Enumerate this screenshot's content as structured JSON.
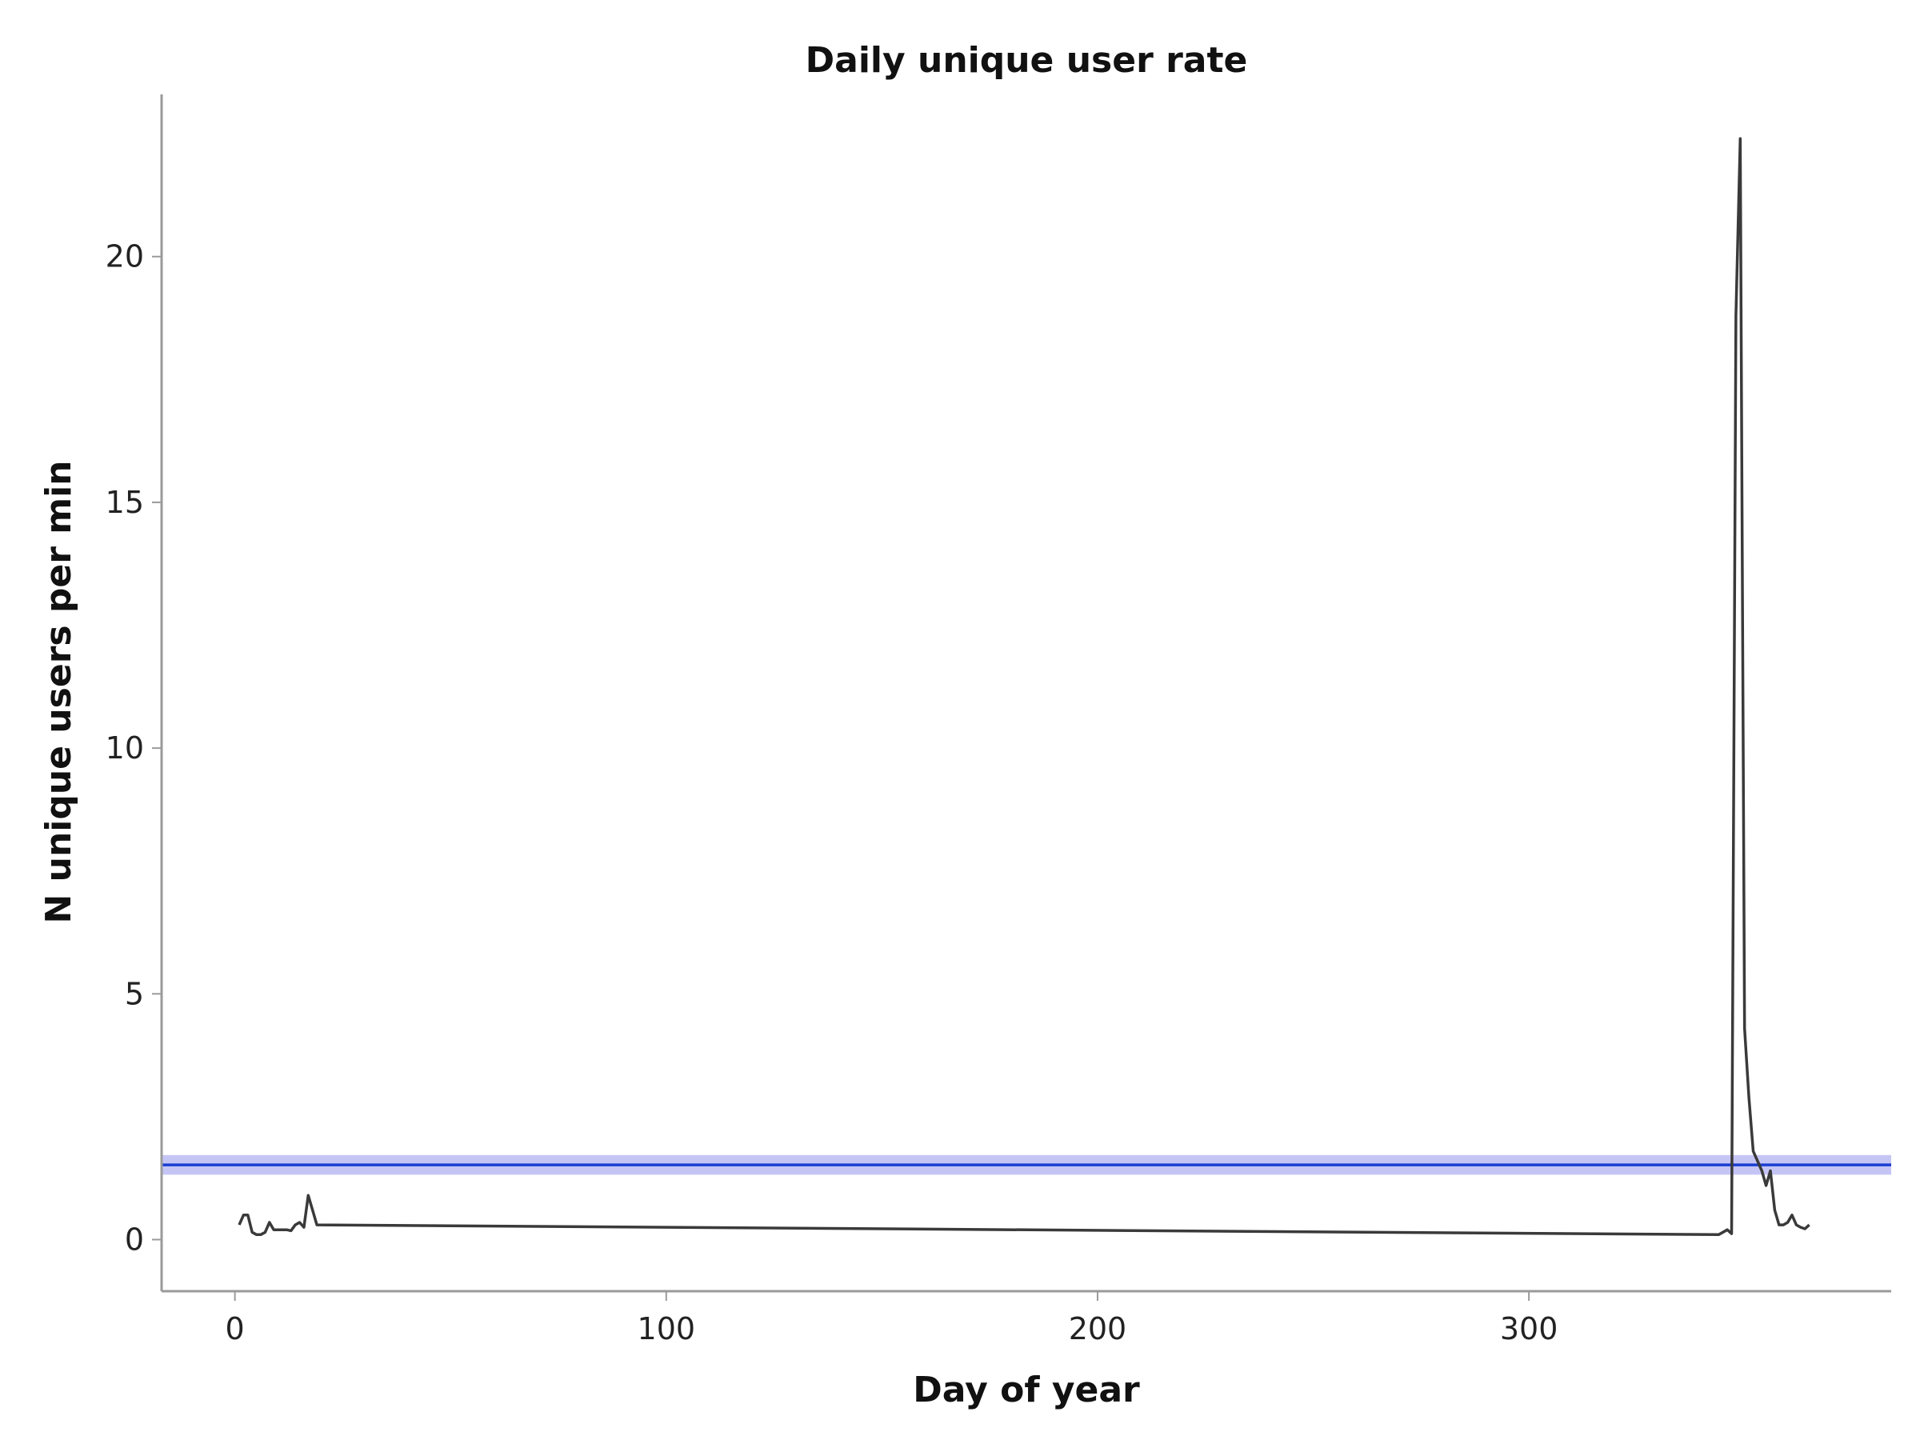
{
  "chart_data": {
    "type": "line",
    "title": "Daily unique user rate",
    "xlabel": "Day of year",
    "ylabel": "N unique users per min",
    "xlim": [
      -17,
      384
    ],
    "ylim": [
      -1.05,
      23.3
    ],
    "xticks": [
      0,
      100,
      200,
      300
    ],
    "yticks": [
      0,
      5,
      10,
      15,
      20
    ],
    "grid": false,
    "series": [
      {
        "color": "#3a3a3a",
        "x": [
          1,
          2,
          3,
          4,
          5,
          6,
          7,
          8,
          9,
          10,
          11,
          12,
          13,
          14,
          15,
          16,
          17,
          18,
          19,
          344,
          345,
          346,
          347,
          348,
          349,
          350,
          351,
          352,
          353,
          354,
          355,
          356,
          357,
          358,
          359,
          360,
          361,
          362,
          363,
          364,
          365
        ],
        "y": [
          0.3,
          0.5,
          0.5,
          0.15,
          0.1,
          0.1,
          0.15,
          0.35,
          0.2,
          0.2,
          0.2,
          0.2,
          0.18,
          0.3,
          0.35,
          0.25,
          0.9,
          0.6,
          0.3,
          0.1,
          0.15,
          0.2,
          0.12,
          18.8,
          22.4,
          4.3,
          2.9,
          1.8,
          1.6,
          1.4,
          1.1,
          1.4,
          0.6,
          0.3,
          0.3,
          0.35,
          0.5,
          0.3,
          0.25,
          0.22,
          0.3
        ]
      }
    ],
    "reference_line": {
      "color": "#1a3fd1",
      "band_color": "#c5c5f5",
      "y": 1.52,
      "band": [
        1.32,
        1.72
      ]
    }
  }
}
